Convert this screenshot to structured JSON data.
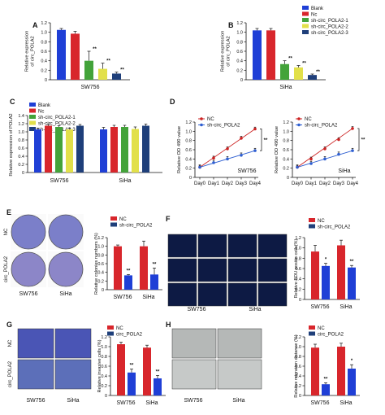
{
  "colors": {
    "blank": "#1f3fd6",
    "nc": "#d8262c",
    "sh1": "#43a33a",
    "sh2": "#e2e04a",
    "sh3": "#1f3f7a",
    "line_nc": "#cc2222",
    "line_sh": "#2f5fd1"
  },
  "panels": {
    "A": {
      "letter": "A",
      "type": "bar",
      "ylabel": "Relative expression\nof circ_POLA2",
      "yticks": [
        "0",
        "0.2",
        "0.4",
        "0.6",
        "0.8",
        "1.0",
        "1.2"
      ],
      "ylim": [
        0,
        1.2
      ],
      "group": "SW756",
      "bars": [
        {
          "key": "blank",
          "value": 1.05,
          "err": 0.03,
          "sig": ""
        },
        {
          "key": "nc",
          "value": 0.97,
          "err": 0.05,
          "sig": ""
        },
        {
          "key": "sh1",
          "value": 0.4,
          "err": 0.2,
          "sig": "**"
        },
        {
          "key": "sh2",
          "value": 0.23,
          "err": 0.12,
          "sig": "**"
        },
        {
          "key": "sh3",
          "value": 0.13,
          "err": 0.03,
          "sig": "**"
        }
      ]
    },
    "B": {
      "letter": "B",
      "type": "bar",
      "ylabel": "Relative expression\nof circ_POLA2",
      "yticks": [
        "0",
        "0.2",
        "0.4",
        "0.6",
        "0.8",
        "1.0",
        "1.2"
      ],
      "ylim": [
        0,
        1.2
      ],
      "group": "SiHa",
      "bars": [
        {
          "key": "blank",
          "value": 1.04,
          "err": 0.04,
          "sig": ""
        },
        {
          "key": "nc",
          "value": 1.04,
          "err": 0.04,
          "sig": ""
        },
        {
          "key": "sh1",
          "value": 0.33,
          "err": 0.07,
          "sig": "**"
        },
        {
          "key": "sh2",
          "value": 0.26,
          "err": 0.04,
          "sig": "**"
        },
        {
          "key": "sh3",
          "value": 0.1,
          "err": 0.02,
          "sig": "**"
        }
      ],
      "legend": [
        "Blank",
        "Nc",
        "sh-circ_POLA2-1",
        "sh-circ_POLA2-2",
        "sh-circ_POLA2-3"
      ]
    },
    "C": {
      "letter": "C",
      "type": "grouped-bar",
      "ylabel": "Relative expression  of POLA2",
      "yticks": [
        "0",
        "0.2",
        "0.4",
        "0.6",
        "0.8",
        "1.0",
        "1.2",
        "1.4"
      ],
      "ylim": [
        0,
        1.4
      ],
      "categories": [
        "SW756",
        "SiHa"
      ],
      "series": [
        {
          "key": "blank",
          "values": [
            1.06,
            1.06
          ],
          "errs": [
            0.03,
            0.05
          ]
        },
        {
          "key": "nc",
          "values": [
            1.15,
            1.12
          ],
          "errs": [
            0.03,
            0.04
          ]
        },
        {
          "key": "sh1",
          "values": [
            1.12,
            1.12
          ],
          "errs": [
            0.03,
            0.04
          ]
        },
        {
          "key": "sh2",
          "values": [
            1.06,
            1.07
          ],
          "errs": [
            0.03,
            0.05
          ]
        },
        {
          "key": "sh3",
          "values": [
            1.15,
            1.15
          ],
          "errs": [
            0.03,
            0.04
          ]
        }
      ],
      "legend": [
        "Blank",
        "Nc",
        "sh-circ_POLA2-1",
        "sh-circ_POLA2-2",
        "sh-circ_POLA2-3"
      ]
    },
    "D": {
      "letter": "D",
      "type": "line",
      "ylabel": "Relative OD 490 value",
      "yticks": [
        "0",
        "0.2",
        "0.4",
        "0.6",
        "0.8",
        "1.0",
        "1.2"
      ],
      "ylim": [
        0,
        1.2
      ],
      "xticks": [
        "Day0",
        "Day1",
        "Day2",
        "Day3",
        "Day4"
      ],
      "legend": [
        "NC",
        "sh-circ_POLA2"
      ],
      "subplots": [
        {
          "name": "SW756",
          "nc": [
            0.22,
            0.42,
            0.62,
            0.85,
            1.05
          ],
          "sh": [
            0.22,
            0.32,
            0.4,
            0.48,
            0.58
          ],
          "sig": "**"
        },
        {
          "name": "SiHa",
          "nc": [
            0.22,
            0.4,
            0.62,
            0.82,
            1.06
          ],
          "sh": [
            0.22,
            0.3,
            0.4,
            0.5,
            0.58
          ],
          "sig": "**"
        }
      ]
    },
    "E": {
      "letter": "E",
      "type": "bar",
      "ylabel": "Relative colonies numbers (%)",
      "yticks": [
        "0",
        "0.2",
        "0.4",
        "0.6",
        "0.8",
        "1.0",
        "1.2"
      ],
      "ylim": [
        0,
        1.2
      ],
      "legend": [
        "NC",
        "sh-circ_POLA2"
      ],
      "categories": [
        "SW756",
        "SiHa"
      ],
      "nc": [
        1.0,
        1.0
      ],
      "nc_err": [
        0.03,
        0.12
      ],
      "sh": [
        0.33,
        0.35
      ],
      "sh_err": [
        0.02,
        0.15
      ],
      "sig": [
        "**",
        "**"
      ],
      "row_labels": [
        "NC",
        "circ_POLA2"
      ],
      "col_labels": [
        "SW756",
        "SiHa"
      ]
    },
    "F": {
      "letter": "F",
      "type": "bar",
      "ylabel": "Relative EDU positie cells(%)",
      "yticks": [
        "0",
        "0.2",
        "0.4",
        "0.6",
        "0.8",
        "1.0",
        "1.2"
      ],
      "ylim": [
        0,
        1.2
      ],
      "legend": [
        "NC",
        "sh-circ_POLA2"
      ],
      "categories": [
        "SW756",
        "SiHa"
      ],
      "nc": [
        0.93,
        1.05
      ],
      "nc_err": [
        0.12,
        0.1
      ],
      "sh": [
        0.65,
        0.62
      ],
      "sh_err": [
        0.05,
        0.04
      ],
      "sig": [
        "*",
        "**"
      ],
      "col_labels": [
        "SW756",
        "SiHa"
      ]
    },
    "G": {
      "letter": "G",
      "type": "bar",
      "ylabel": "Relative invasive cells (%)",
      "yticks": [
        "0",
        "0.2",
        "0.4",
        "0.6",
        "0.8",
        "1.0",
        "1.2"
      ],
      "ylim": [
        0,
        1.2
      ],
      "legend": [
        "NC",
        "circ_POLA2"
      ],
      "categories": [
        "SW756",
        "SiHa"
      ],
      "nc": [
        1.05,
        0.98
      ],
      "nc_err": [
        0.04,
        0.05
      ],
      "sh": [
        0.47,
        0.35
      ],
      "sh_err": [
        0.07,
        0.06
      ],
      "sig": [
        "**",
        "**"
      ],
      "row_labels": [
        "NC",
        "circ_POLA2"
      ],
      "col_labels": [
        "SW756",
        "SiHa"
      ]
    },
    "H": {
      "letter": "H",
      "type": "bar",
      "ylabel": "Relative migration distance (%)",
      "yticks": [
        "0",
        "0.2",
        "0.4",
        "0.6",
        "0.8",
        "1.0",
        "1.2"
      ],
      "ylim": [
        0,
        1.2
      ],
      "legend": [
        "NC",
        "circ_POLA2"
      ],
      "categories": [
        "SW756",
        "SiHa"
      ],
      "nc": [
        0.98,
        1.0
      ],
      "nc_err": [
        0.07,
        0.07
      ],
      "sh": [
        0.23,
        0.55
      ],
      "sh_err": [
        0.03,
        0.08
      ],
      "sig": [
        "**",
        "*"
      ],
      "col_labels": [
        "SW756",
        "SiHa"
      ]
    }
  }
}
